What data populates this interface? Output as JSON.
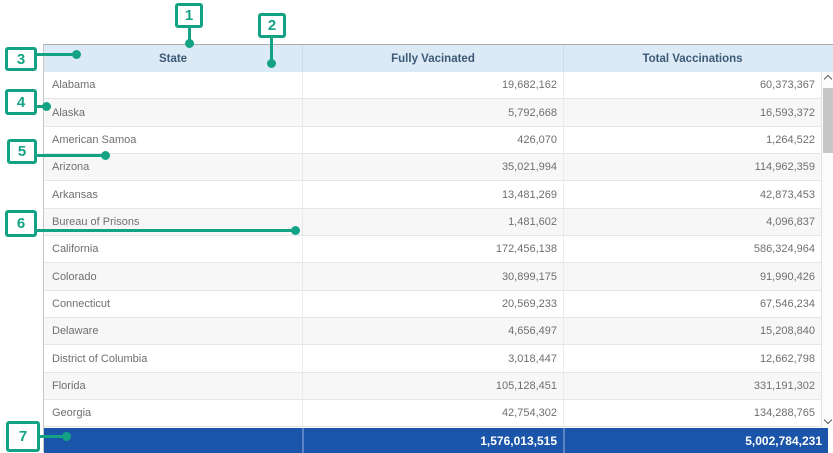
{
  "table": {
    "columns": [
      "State",
      "Fully Vacinated",
      "Total Vaccinations"
    ],
    "rows": [
      {
        "state": "Alabama",
        "fully_vaccinated": "19,682,162",
        "total_vaccinations": "60,373,367"
      },
      {
        "state": "Alaska",
        "fully_vaccinated": "5,792,668",
        "total_vaccinations": "16,593,372"
      },
      {
        "state": "American Samoa",
        "fully_vaccinated": "426,070",
        "total_vaccinations": "1,264,522"
      },
      {
        "state": "Arizona",
        "fully_vaccinated": "35,021,994",
        "total_vaccinations": "114,962,359"
      },
      {
        "state": "Arkansas",
        "fully_vaccinated": "13,481,269",
        "total_vaccinations": "42,873,453"
      },
      {
        "state": "Bureau of Prisons",
        "fully_vaccinated": "1,481,602",
        "total_vaccinations": "4,096,837"
      },
      {
        "state": "California",
        "fully_vaccinated": "172,456,138",
        "total_vaccinations": "586,324,964"
      },
      {
        "state": "Colorado",
        "fully_vaccinated": "30,899,175",
        "total_vaccinations": "91,990,426"
      },
      {
        "state": "Connecticut",
        "fully_vaccinated": "20,569,233",
        "total_vaccinations": "67,546,234"
      },
      {
        "state": "Delaware",
        "fully_vaccinated": "4,656,497",
        "total_vaccinations": "15,208,840"
      },
      {
        "state": "District of Columbia",
        "fully_vaccinated": "3,018,447",
        "total_vaccinations": "12,662,798"
      },
      {
        "state": "Florida",
        "fully_vaccinated": "105,128,451",
        "total_vaccinations": "331,191,302"
      },
      {
        "state": "Georgia",
        "fully_vaccinated": "42,754,302",
        "total_vaccinations": "134,288,765"
      }
    ],
    "total_row": {
      "state": "",
      "fully_vaccinated": "1,576,013,515",
      "total_vaccinations": "5,002,784,231"
    }
  },
  "annotations": {
    "callouts": [
      {
        "label": "1",
        "target": "table-top-edge"
      },
      {
        "label": "2",
        "target": "state-column-header-right-edge"
      },
      {
        "label": "3",
        "target": "header-row"
      },
      {
        "label": "4",
        "target": "alaska-row-label"
      },
      {
        "label": "5",
        "target": "row-boundary-american-samoa-arizona"
      },
      {
        "label": "6",
        "target": "row-boundary-bureau-of-prisons-california"
      },
      {
        "label": "7",
        "target": "total-row"
      }
    ]
  },
  "scrollbar": {
    "up_icon": "chevron-up",
    "down_icon": "chevron-down",
    "orientation": "vertical"
  },
  "colors": {
    "annotation_accent": "#13a384",
    "header_background": "#dbeaf5",
    "header_text": "#3d5a77",
    "total_row_background": "#1b55a9",
    "total_row_text": "#ffffff",
    "row_text": "#6f6f6f",
    "alt_row_background": "#f7f7f7"
  }
}
